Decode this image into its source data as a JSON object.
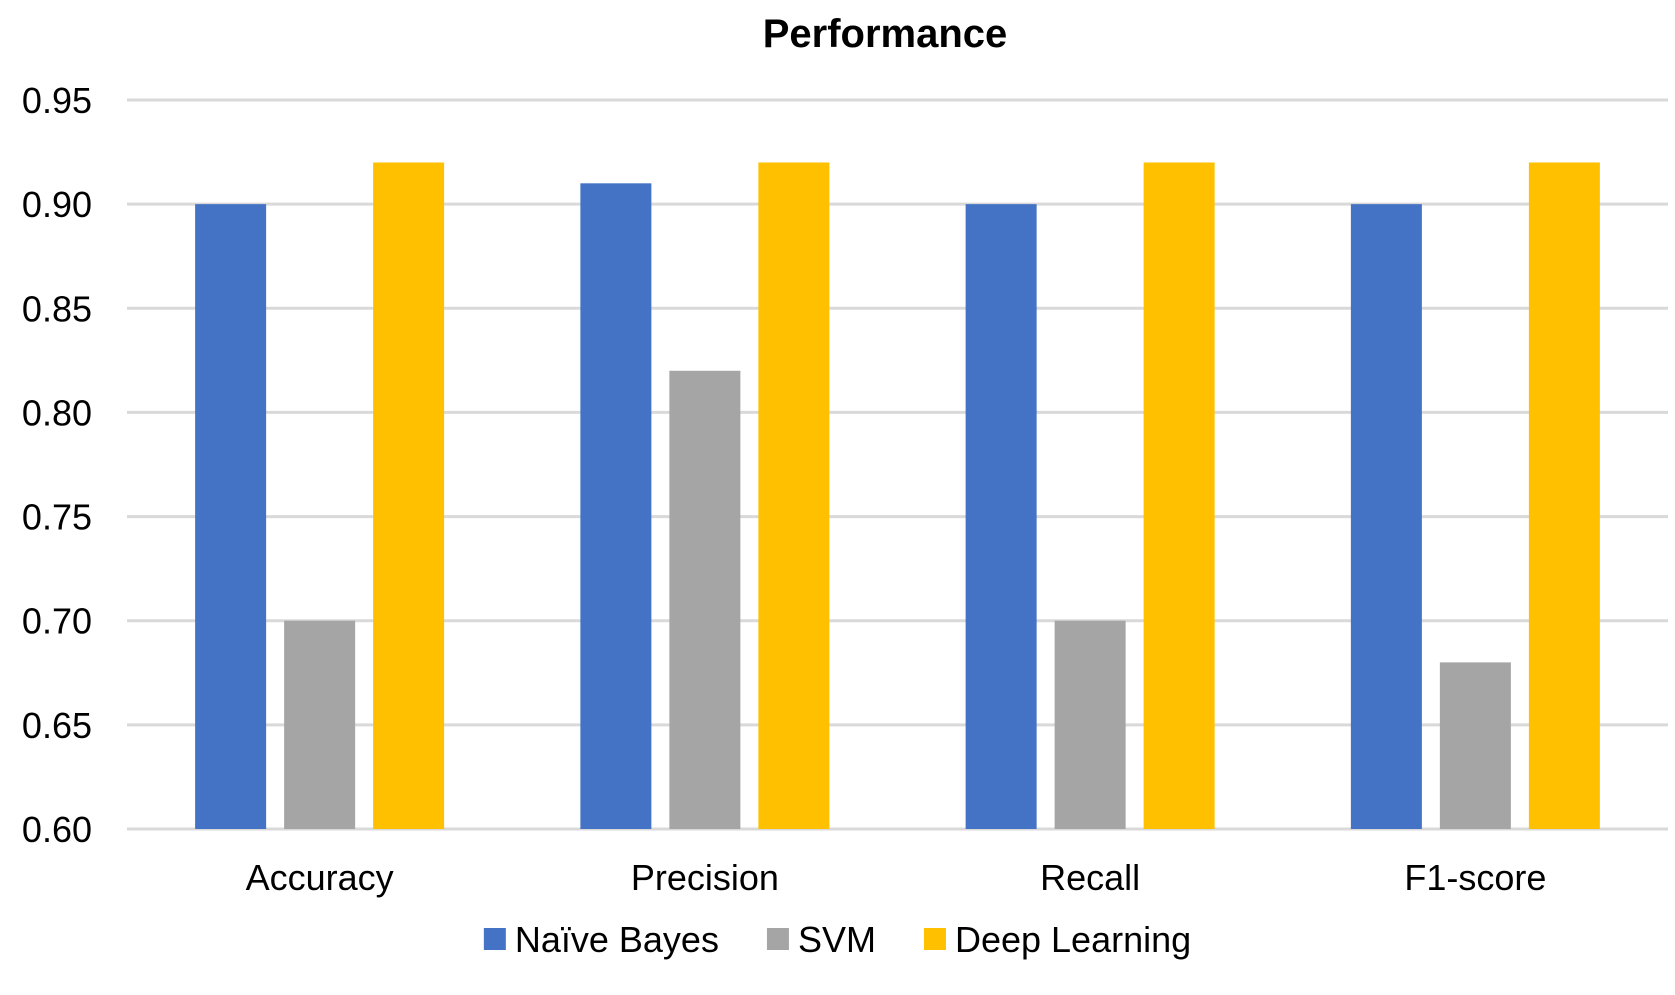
{
  "chart_data": {
    "type": "bar",
    "title": "Performance",
    "xlabel": "",
    "ylabel": "",
    "categories": [
      "Accuracy",
      "Precision",
      "Recall",
      "F1-score"
    ],
    "series": [
      {
        "name": "Naïve Bayes",
        "color": "#4472c4",
        "values": [
          0.9,
          0.91,
          0.9,
          0.9
        ]
      },
      {
        "name": "SVM",
        "color": "#a5a5a5",
        "values": [
          0.7,
          0.82,
          0.7,
          0.68
        ]
      },
      {
        "name": "Deep Learning",
        "color": "#ffc000",
        "values": [
          0.92,
          0.92,
          0.92,
          0.92
        ]
      }
    ],
    "ylim": [
      0.6,
      0.95
    ],
    "yticks": [
      "0.60",
      "0.65",
      "0.70",
      "0.75",
      "0.80",
      "0.85",
      "0.90",
      "0.95"
    ],
    "grid": true,
    "legend": "bottom"
  }
}
